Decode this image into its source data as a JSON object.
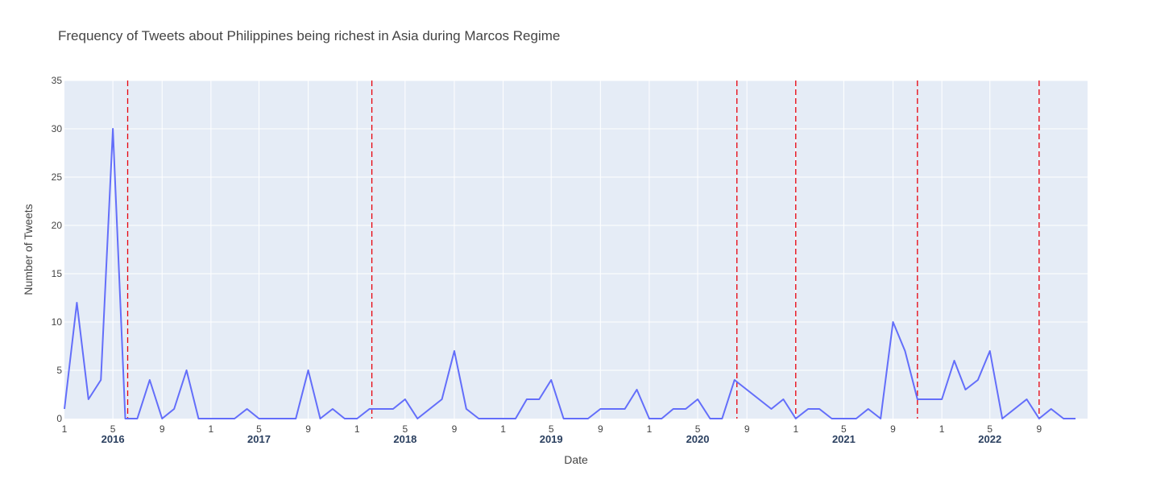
{
  "chart_data": {
    "type": "line",
    "title": "Frequency of Tweets about Philippines being richest in Asia during Marcos Regime",
    "xlabel": "Date",
    "ylabel": "Number of Tweets",
    "ylim": [
      0,
      35
    ],
    "yticks": [
      0,
      5,
      10,
      15,
      20,
      25,
      30,
      35
    ],
    "xlim": [
      "2016-01-01",
      "2022-12-31"
    ],
    "x_month_ticks": [
      {
        "date": "2016-01-01",
        "label": "1"
      },
      {
        "date": "2016-05-01",
        "label": "5"
      },
      {
        "date": "2016-09-01",
        "label": "9"
      },
      {
        "date": "2017-01-01",
        "label": "1"
      },
      {
        "date": "2017-05-01",
        "label": "5"
      },
      {
        "date": "2017-09-01",
        "label": "9"
      },
      {
        "date": "2018-01-01",
        "label": "1"
      },
      {
        "date": "2018-05-01",
        "label": "5"
      },
      {
        "date": "2018-09-01",
        "label": "9"
      },
      {
        "date": "2019-01-01",
        "label": "1"
      },
      {
        "date": "2019-05-01",
        "label": "5"
      },
      {
        "date": "2019-09-01",
        "label": "9"
      },
      {
        "date": "2020-01-01",
        "label": "1"
      },
      {
        "date": "2020-05-01",
        "label": "5"
      },
      {
        "date": "2020-09-01",
        "label": "9"
      },
      {
        "date": "2021-01-01",
        "label": "1"
      },
      {
        "date": "2021-05-01",
        "label": "5"
      },
      {
        "date": "2021-09-01",
        "label": "9"
      },
      {
        "date": "2022-01-01",
        "label": "1"
      },
      {
        "date": "2022-05-01",
        "label": "5"
      },
      {
        "date": "2022-09-01",
        "label": "9"
      }
    ],
    "x_year_labels": [
      {
        "date": "2016-05-01",
        "label": "2016"
      },
      {
        "date": "2017-05-01",
        "label": "2017"
      },
      {
        "date": "2018-05-01",
        "label": "2018"
      },
      {
        "date": "2019-05-01",
        "label": "2019"
      },
      {
        "date": "2020-05-01",
        "label": "2020"
      },
      {
        "date": "2021-05-01",
        "label": "2021"
      },
      {
        "date": "2022-05-01",
        "label": "2022"
      }
    ],
    "series": [
      {
        "color": "#636efa",
        "points": [
          [
            "2016-01-01",
            1
          ],
          [
            "2016-02-01",
            12
          ],
          [
            "2016-03-01",
            2
          ],
          [
            "2016-04-01",
            4
          ],
          [
            "2016-05-01",
            30
          ],
          [
            "2016-06-01",
            0
          ],
          [
            "2016-07-01",
            0
          ],
          [
            "2016-08-01",
            4
          ],
          [
            "2016-09-01",
            0
          ],
          [
            "2016-10-01",
            1
          ],
          [
            "2016-11-01",
            5
          ],
          [
            "2016-12-01",
            0
          ],
          [
            "2017-01-01",
            0
          ],
          [
            "2017-02-01",
            0
          ],
          [
            "2017-03-01",
            0
          ],
          [
            "2017-04-01",
            1
          ],
          [
            "2017-05-01",
            0
          ],
          [
            "2017-06-01",
            0
          ],
          [
            "2017-07-01",
            0
          ],
          [
            "2017-08-01",
            0
          ],
          [
            "2017-09-01",
            5
          ],
          [
            "2017-10-01",
            0
          ],
          [
            "2017-11-01",
            1
          ],
          [
            "2017-12-01",
            0
          ],
          [
            "2018-01-01",
            0
          ],
          [
            "2018-02-01",
            1
          ],
          [
            "2018-03-01",
            1
          ],
          [
            "2018-04-01",
            1
          ],
          [
            "2018-05-01",
            2
          ],
          [
            "2018-06-01",
            0
          ],
          [
            "2018-08-01",
            2
          ],
          [
            "2018-09-01",
            7
          ],
          [
            "2018-10-01",
            1
          ],
          [
            "2018-11-01",
            0
          ],
          [
            "2018-12-01",
            0
          ],
          [
            "2019-01-01",
            0
          ],
          [
            "2019-02-01",
            0
          ],
          [
            "2019-03-01",
            2
          ],
          [
            "2019-04-01",
            2
          ],
          [
            "2019-05-01",
            4
          ],
          [
            "2019-06-01",
            0
          ],
          [
            "2019-07-01",
            0
          ],
          [
            "2019-08-01",
            0
          ],
          [
            "2019-09-01",
            1
          ],
          [
            "2019-10-01",
            1
          ],
          [
            "2019-11-01",
            1
          ],
          [
            "2019-12-01",
            3
          ],
          [
            "2020-01-01",
            0
          ],
          [
            "2020-02-01",
            0
          ],
          [
            "2020-03-01",
            1
          ],
          [
            "2020-04-01",
            1
          ],
          [
            "2020-05-01",
            2
          ],
          [
            "2020-06-01",
            0
          ],
          [
            "2020-07-01",
            0
          ],
          [
            "2020-08-01",
            4
          ],
          [
            "2020-11-01",
            1
          ],
          [
            "2020-12-01",
            2
          ],
          [
            "2021-01-01",
            0
          ],
          [
            "2021-02-01",
            1
          ],
          [
            "2021-03-01",
            1
          ],
          [
            "2021-04-01",
            0
          ],
          [
            "2021-05-01",
            0
          ],
          [
            "2021-06-01",
            0
          ],
          [
            "2021-07-01",
            1
          ],
          [
            "2021-08-01",
            0
          ],
          [
            "2021-09-01",
            10
          ],
          [
            "2021-10-01",
            7
          ],
          [
            "2021-11-01",
            2
          ],
          [
            "2021-12-01",
            2
          ],
          [
            "2022-01-01",
            2
          ],
          [
            "2022-02-01",
            6
          ],
          [
            "2022-03-01",
            3
          ],
          [
            "2022-04-01",
            4
          ],
          [
            "2022-05-01",
            7
          ],
          [
            "2022-06-01",
            0
          ],
          [
            "2022-08-01",
            2
          ],
          [
            "2022-09-01",
            0
          ],
          [
            "2022-10-01",
            1
          ],
          [
            "2022-11-01",
            0
          ],
          [
            "2022-12-01",
            0
          ]
        ]
      }
    ],
    "event_lines": {
      "color": "#e8000b",
      "style": "dashed",
      "dates": [
        "2016-06-07",
        "2018-02-07",
        "2020-08-07",
        "2021-01-01",
        "2021-11-01",
        "2022-09-01"
      ]
    },
    "grid": true,
    "plot_background": "#e5ecf6",
    "grid_color": "#ffffff"
  }
}
